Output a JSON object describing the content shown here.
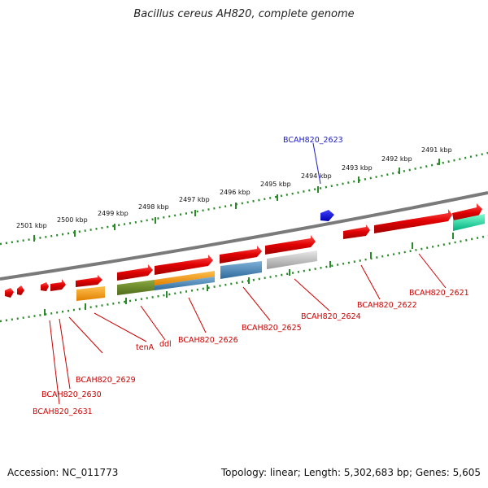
{
  "title": "Bacillus cereus AH820, complete genome",
  "footer": {
    "accession": "Accession: NC_011773",
    "stats": "Topology: linear; Length: 5,302,683 bp; Genes: 5,605"
  },
  "scale": {
    "labels": [
      "2501 kbp",
      "2500 kbp",
      "2499 kbp",
      "2498 kbp",
      "2497 kbp",
      "2496 kbp",
      "2495 kbp",
      "2494 kbp",
      "2493 kbp",
      "2492 kbp",
      "2491 kbp"
    ]
  },
  "genes": [
    {
      "label": "BCAH820_2623",
      "color": "#1a1acc"
    },
    {
      "label": "BCAH820_2621",
      "color": "#cc0000"
    },
    {
      "label": "BCAH820_2622",
      "color": "#cc0000"
    },
    {
      "label": "BCAH820_2624",
      "color": "#cc0000"
    },
    {
      "label": "BCAH820_2625",
      "color": "#cc0000"
    },
    {
      "label": "BCAH820_2626",
      "color": "#cc0000"
    },
    {
      "label": "ddl",
      "color": "#cc0000"
    },
    {
      "label": "tenA",
      "color": "#cc0000"
    },
    {
      "label": "BCAH820_2629",
      "color": "#cc0000"
    },
    {
      "label": "BCAH820_2630",
      "color": "#cc0000"
    },
    {
      "label": "BCAH820_2631",
      "color": "#cc0000"
    }
  ],
  "colors": {
    "gene_red": "#e0000f",
    "gene_blue": "#1010d0",
    "orange": "#ff9900",
    "olive": "#6b8e23",
    "steelblue": "#4682b4",
    "gray": "#b0b0b0",
    "teal": "#00e0a0",
    "backbone": "#7a7a7a",
    "ticks": "#2a8a2a"
  }
}
